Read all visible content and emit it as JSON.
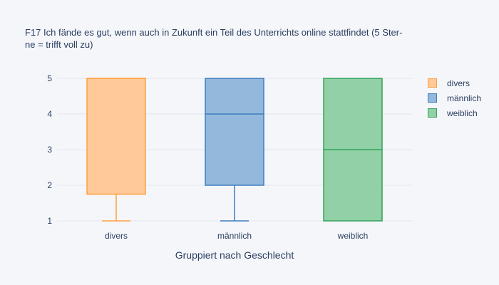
{
  "chart_data": {
    "type": "box",
    "title_lines": [
      "F17 Ich fände es gut, wenn auch in Zukunft ein Teil des Unterrichts online stattfindet (5 Ster-",
      "ne = trifft voll zu)"
    ],
    "xlabel": "Gruppiert nach Geschlecht",
    "ylabel": "",
    "ylim": [
      0.8,
      5.2
    ],
    "yticks": [
      1,
      2,
      3,
      4,
      5
    ],
    "grid": true,
    "legend_position": "top-right",
    "categories": [
      "divers",
      "männlich",
      "weiblich"
    ],
    "series": [
      {
        "name": "divers",
        "color": "#ff9f3f",
        "fill": "#ffc999",
        "min": 1,
        "q1": 1.75,
        "median": 5,
        "q3": 5,
        "max": 5
      },
      {
        "name": "männlich",
        "color": "#3d7ebf",
        "fill": "#94b8dc",
        "min": 1,
        "q1": 2,
        "median": 4,
        "q3": 5,
        "max": 5
      },
      {
        "name": "weiblich",
        "color": "#33a35a",
        "fill": "#92d1a7",
        "min": 1,
        "q1": 1,
        "median": 3,
        "q3": 5,
        "max": 5
      }
    ]
  }
}
